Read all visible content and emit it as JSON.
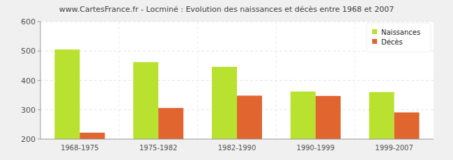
{
  "chart_data": {
    "type": "bar",
    "title": "www.CartesFrance.fr - Locminé : Evolution des naissances et décès entre 1968 et 2007",
    "categories": [
      "1968-1975",
      "1975-1982",
      "1982-1990",
      "1990-1999",
      "1999-2007"
    ],
    "series": [
      {
        "name": "Naissances",
        "color": "#b9e12f",
        "values": [
          505,
          462,
          446,
          362,
          360
        ]
      },
      {
        "name": "Décès",
        "color": "#e0652f",
        "values": [
          222,
          306,
          348,
          347,
          291
        ]
      }
    ],
    "ylim": [
      200,
      600
    ],
    "yticks": [
      200,
      300,
      400,
      500,
      600
    ],
    "grid": true,
    "legend": "top-right"
  }
}
